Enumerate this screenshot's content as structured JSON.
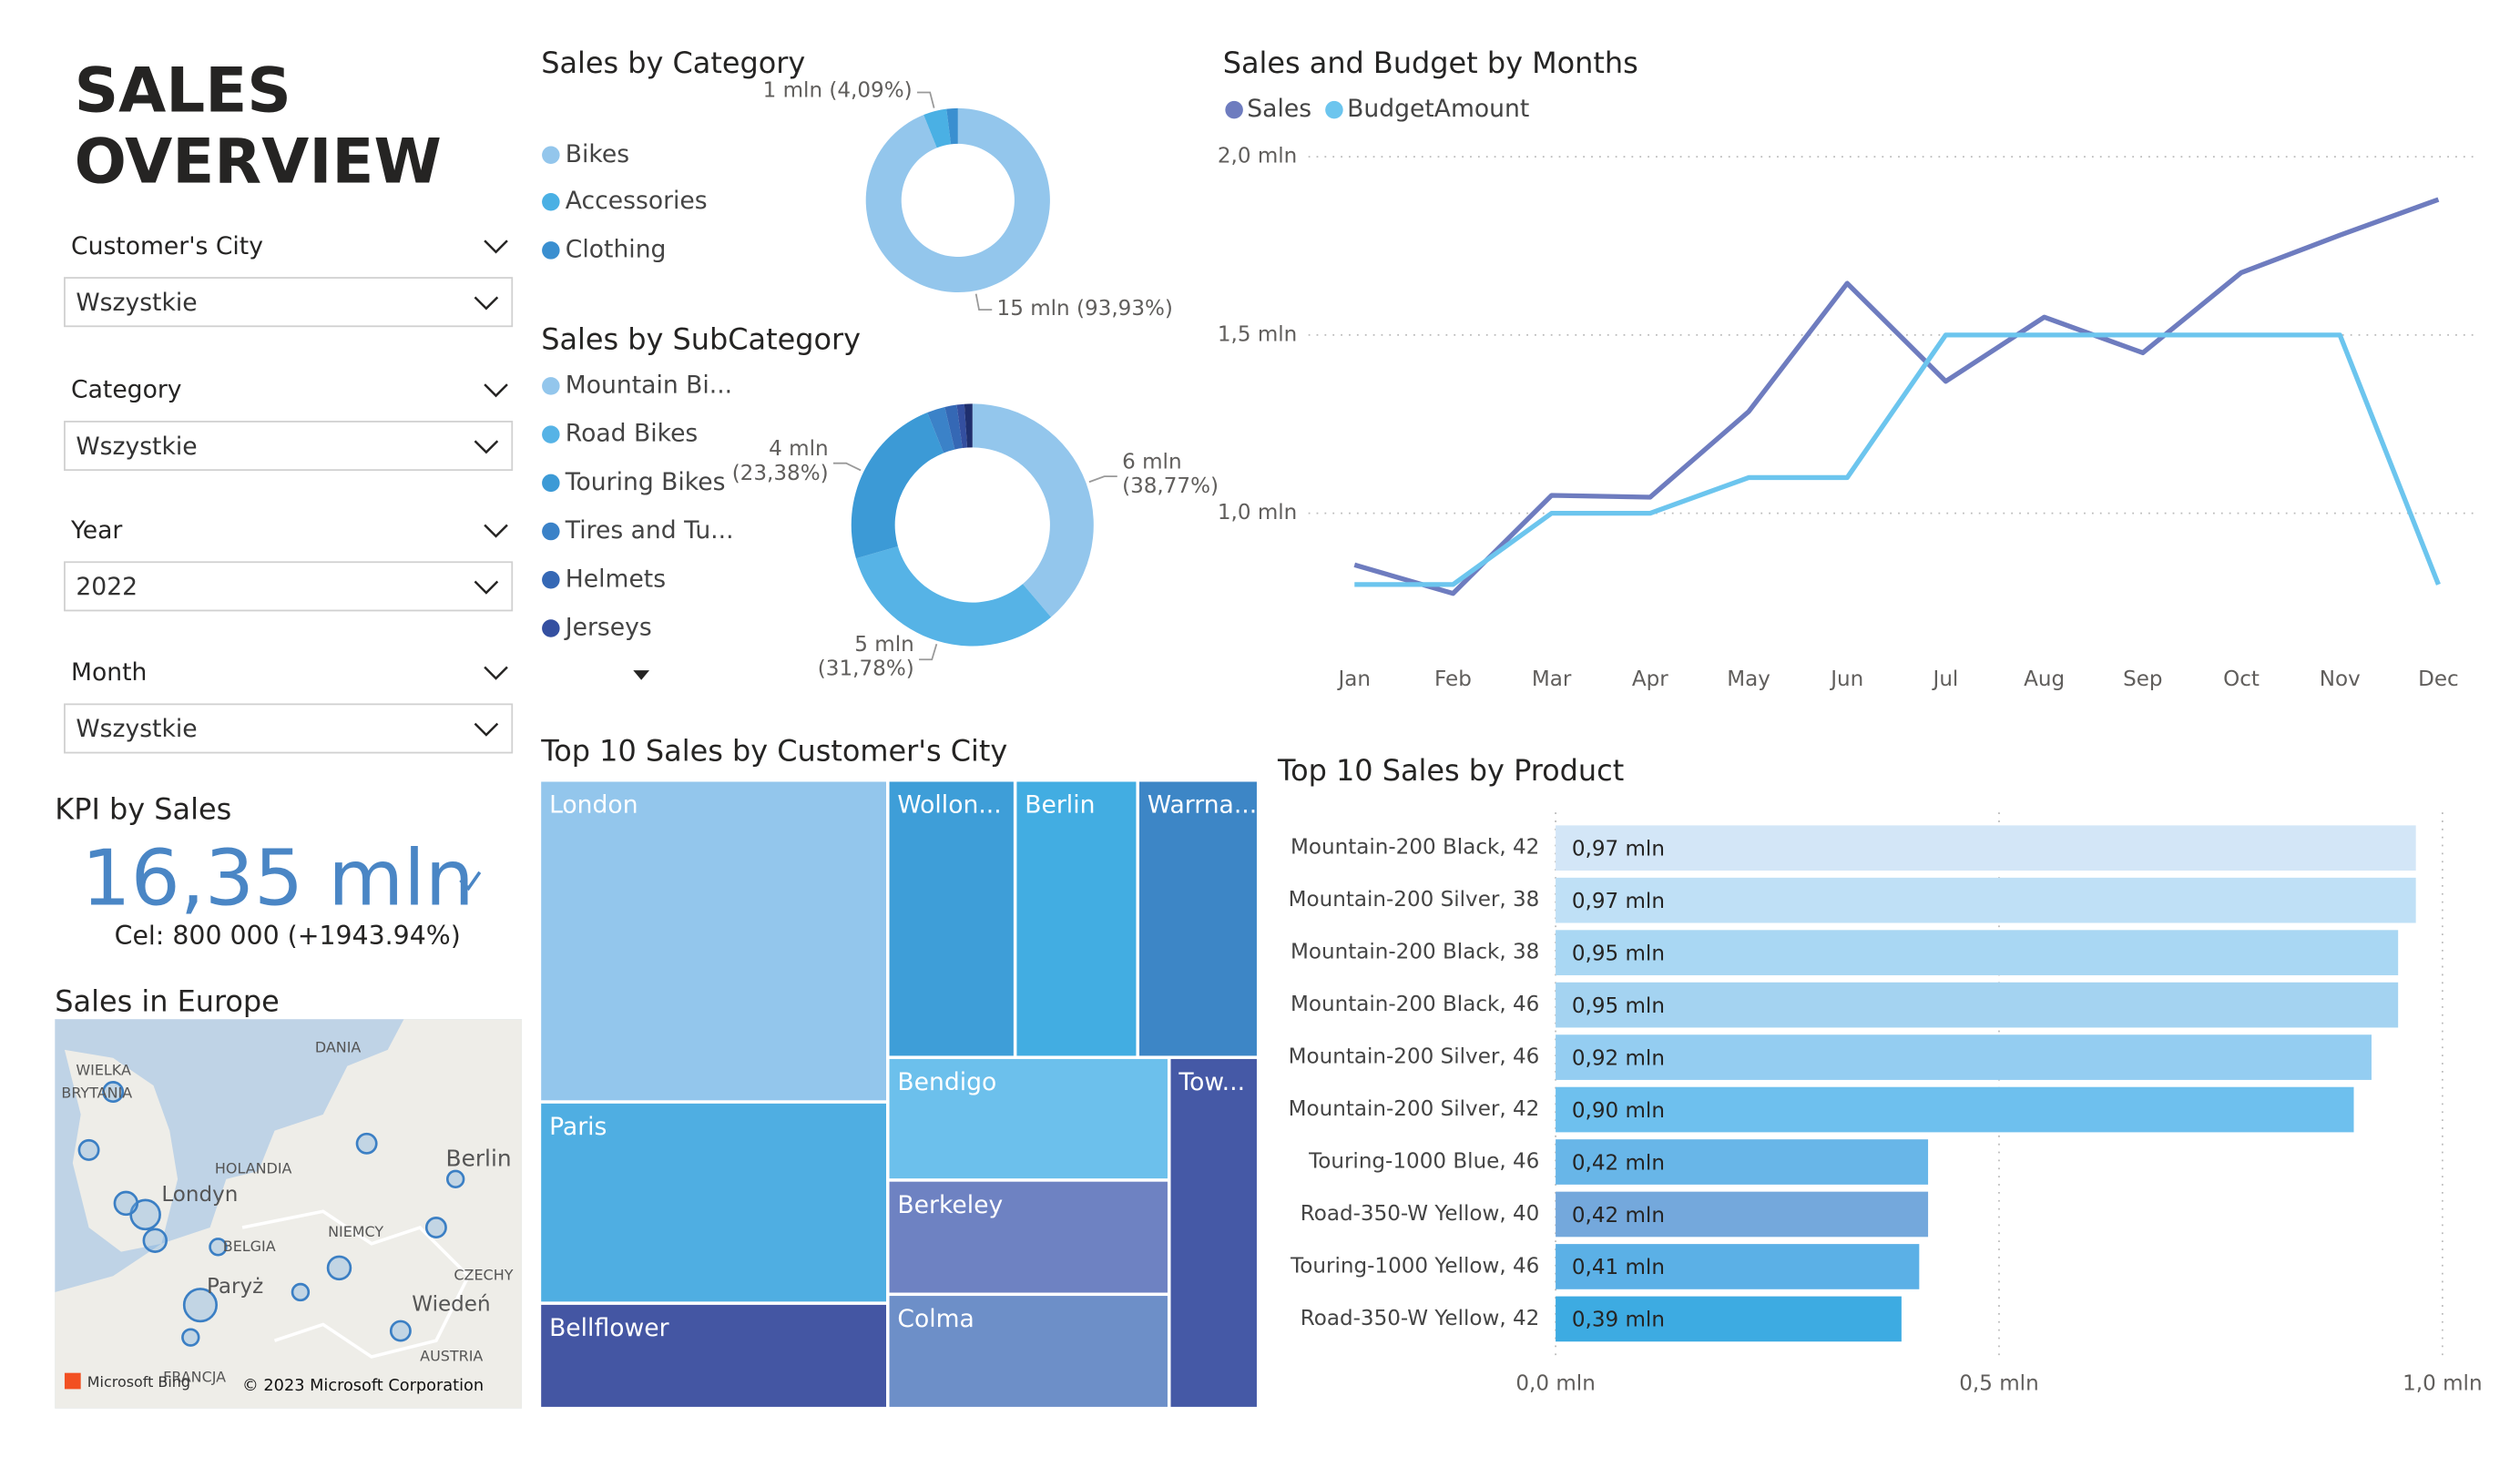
{
  "header": {
    "title": "SALES OVERVIEW"
  },
  "filters": [
    {
      "label": "Customer's City",
      "value": "Wszystkie"
    },
    {
      "label": "Category",
      "value": "Wszystkie"
    },
    {
      "label": "Year",
      "value": "2022"
    },
    {
      "label": "Month",
      "value": "Wszystkie"
    }
  ],
  "kpi": {
    "title": "KPI by Sales",
    "value": "16,35 mln",
    "goal": "Cel: 800 000 (+1943.94%)"
  },
  "map": {
    "title": "Sales in Europe",
    "labels": [
      "WIELKA",
      "BRYTANIA",
      "DANIA",
      "HOLANDIA",
      "Londyn",
      "Berlin",
      "NIEMCY",
      "BELGIA",
      "Paryż",
      "CZECHY",
      "Wiedeń",
      "AUSTRIA",
      "FRANCJA"
    ],
    "logo": "Microsoft Bing",
    "attribution": "© 2023 Microsoft Corporation"
  },
  "chart_data": [
    {
      "type": "donut",
      "title": "Sales by Category",
      "categories": [
        "Bikes",
        "Accessories",
        "Clothing"
      ],
      "values": [
        15357000,
        668700,
        324300
      ],
      "value_labels": [
        "15 mln (93,93%)",
        "1 mln (4,09%)",
        null
      ],
      "colors": [
        "#93C6EC",
        "#4AB0E4",
        "#3A8FD0"
      ]
    },
    {
      "type": "donut",
      "title": "Sales by SubCategory",
      "categories": [
        "Mountain Bi...",
        "Road Bikes",
        "Touring Bikes",
        "Tires and Tu...",
        "Helmets",
        "Jerseys",
        null
      ],
      "values": [
        6339000,
        5196000,
        3823000,
        392000,
        262000,
        164000,
        175000
      ],
      "value_labels": [
        "6 mln (38,77%)",
        "5 mln (31,78%)",
        "4 mln (23,38%)",
        null,
        null,
        null,
        null
      ],
      "colors": [
        "#93C6EC",
        "#56B3E6",
        "#3C9AD6",
        "#3B82C8",
        "#3568B5",
        "#344FA0",
        "#1F2F6E"
      ]
    },
    {
      "type": "line",
      "title": "Sales and Budget by Months",
      "categories": [
        "Jan",
        "Feb",
        "Mar",
        "Apr",
        "May",
        "Jun",
        "Jul",
        "Aug",
        "Sep",
        "Oct",
        "Nov",
        "Dec"
      ],
      "series": [
        {
          "name": "Sales",
          "color": "#6E7CBF",
          "values": [
            855000,
            775000,
            1050000,
            1045000,
            1285000,
            1645000,
            1370000,
            1550000,
            1450000,
            1675000,
            1780000,
            1880000
          ]
        },
        {
          "name": "BudgetAmount",
          "color": "#6CC5EE",
          "values": [
            800000,
            800000,
            1000000,
            1000000,
            1100000,
            1100000,
            1500000,
            1500000,
            1500000,
            1500000,
            1500000,
            800000
          ]
        }
      ],
      "ylim": [
        650000,
        2050000
      ],
      "yticks": [
        {
          "value": 1000000,
          "label": "1,0 mln"
        },
        {
          "value": 1500000,
          "label": "1,5 mln"
        },
        {
          "value": 2000000,
          "label": "2,0 mln"
        }
      ],
      "grid": true
    },
    {
      "type": "treemap",
      "title": "Top 10 Sales by Customer's City",
      "categories": [
        "London",
        "Paris",
        "Bellflower",
        "Wollon...",
        "Berlin",
        "Warrna...",
        "Bendigo",
        "Berkeley",
        "Colma",
        "Tow..."
      ],
      "values": [
        422000,
        264000,
        138000,
        133000,
        128000,
        126000,
        130000,
        121000,
        121000,
        118000
      ],
      "colors": [
        "#93C6EC",
        "#4FAEE2",
        "#4456A3",
        "#3E9ED8",
        "#42ADE2",
        "#3D86C6",
        "#6CC0EC",
        "#6E82C2",
        "#6D8FC8",
        "#4559A6"
      ]
    },
    {
      "type": "hbar",
      "title": "Top 10 Sales by Product",
      "categories": [
        "Mountain-200 Black, 42",
        "Mountain-200 Silver, 38",
        "Mountain-200 Black, 38",
        "Mountain-200 Black, 46",
        "Mountain-200 Silver, 46",
        "Mountain-200 Silver, 42",
        "Touring-1000 Blue, 46",
        "Road-350-W Yellow, 40",
        "Touring-1000 Yellow, 46",
        "Road-350-W Yellow, 42"
      ],
      "values": [
        970000,
        970000,
        950000,
        950000,
        920000,
        900000,
        420000,
        420000,
        410000,
        390000
      ],
      "value_labels": [
        "0,97 mln",
        "0,97 mln",
        "0,95 mln",
        "0,95 mln",
        "0,92 mln",
        "0,90 mln",
        "0,42 mln",
        "0,42 mln",
        "0,41 mln",
        "0,39 mln"
      ],
      "colors": [
        "#D3E6F7",
        "#BFE0F6",
        "#A9D7F3",
        "#A4D3F1",
        "#94CDF1",
        "#6EC0EE",
        "#68B6E8",
        "#74A8DC",
        "#5BB0E6",
        "#3DABE2"
      ],
      "xlim": [
        0,
        1000000
      ],
      "xticks": [
        {
          "value": 0,
          "label": "0,0 mln"
        },
        {
          "value": 500000,
          "label": "0,5 mln"
        },
        {
          "value": 1000000,
          "label": "1,0 mln"
        }
      ],
      "grid": true
    }
  ]
}
